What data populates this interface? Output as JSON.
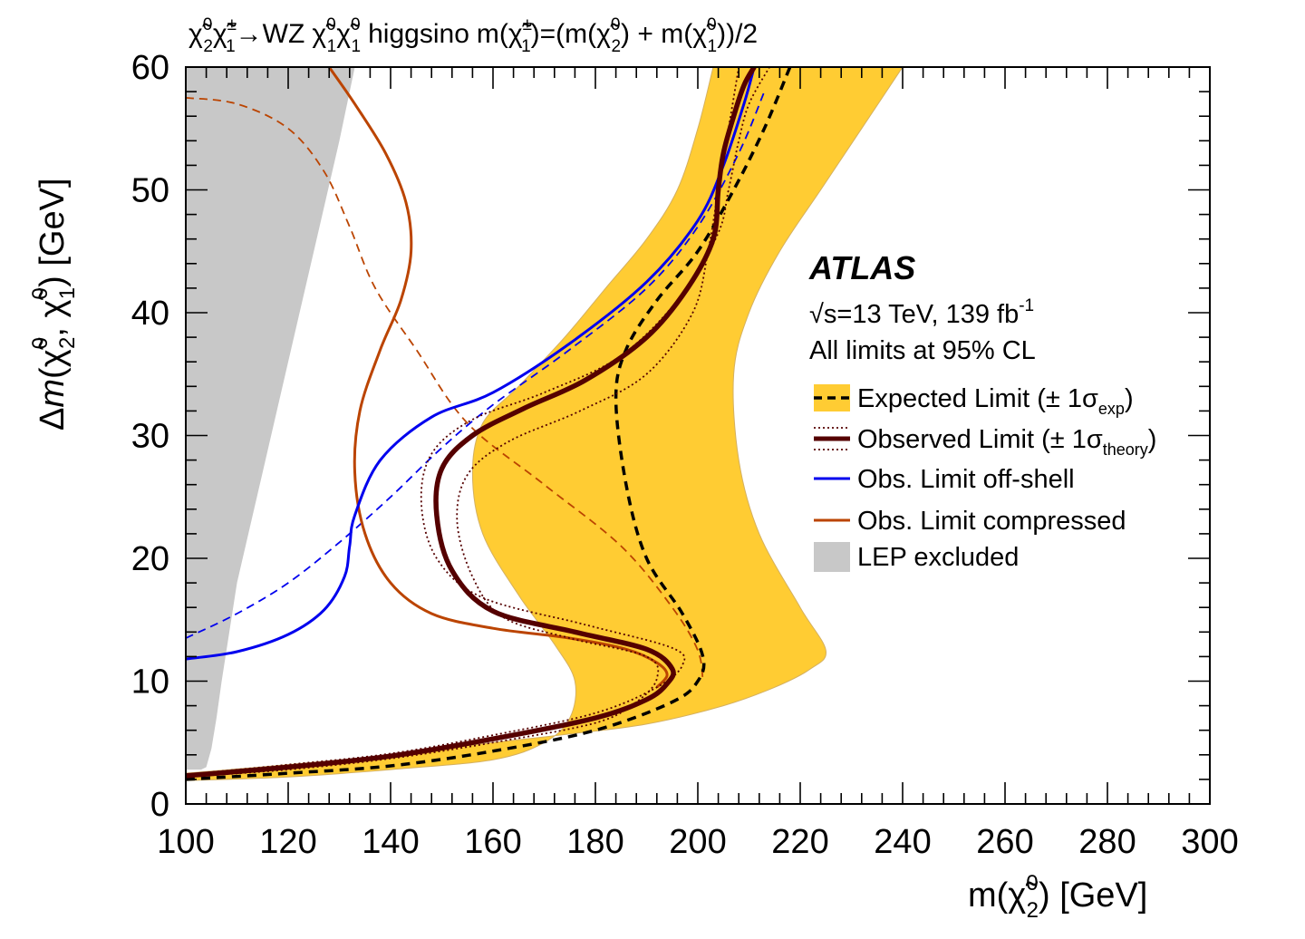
{
  "title": {
    "prefix": "χ̃",
    "arrow_part": "→WZ",
    "model": "higgsino",
    "mass_relation": "m(χ̃",
    "mass_mid": ")=(m(χ̃",
    "plus": ") + m(χ̃",
    "end": "))/2",
    "sup_0": "0",
    "sup_pm": "±",
    "sub_1": "1",
    "sub_2": "2"
  },
  "axes": {
    "x_label_main": "m(χ̃",
    "x_label_sup": "0",
    "x_label_sub": "2",
    "x_label_unit": ") [GeV]",
    "y_label_delta": "Δ",
    "y_label_m": "m",
    "y_label_open": "(χ̃",
    "y_label_sup": "0",
    "y_label_sub2": "2",
    "y_label_mid": ", χ̃",
    "y_label_sub1": "1",
    "y_label_unit": ") [GeV]"
  },
  "atlas": {
    "label": "ATLAS",
    "energy": "√s=13 TeV, 139 fb",
    "energy_sup": "-1",
    "cl": "All limits at 95% CL"
  },
  "legend": [
    {
      "label": "Expected Limit (± 1σ",
      "sub": "exp",
      "close": ")"
    },
    {
      "label": "Observed Limit (± 1σ",
      "sub": "theory",
      "close": ")"
    },
    {
      "label": "Obs. Limit off-shell",
      "sub": "",
      "close": ""
    },
    {
      "label": "Obs. Limit compressed",
      "sub": "",
      "close": ""
    },
    {
      "label": "LEP excluded",
      "sub": "",
      "close": ""
    }
  ],
  "colors": {
    "expected_band": "#FFCC33",
    "expected_line": "#000000",
    "observed": "#550000",
    "off_shell": "#0000EE",
    "compressed": "#BB4400",
    "lep": "#C8C8C8"
  },
  "chart_data": {
    "type": "line",
    "xlim": [
      100,
      300
    ],
    "ylim": [
      0,
      60
    ],
    "x_ticks": [
      100,
      120,
      140,
      160,
      180,
      200,
      220,
      240,
      260,
      280,
      300
    ],
    "y_ticks": [
      0,
      10,
      20,
      30,
      40,
      50,
      60
    ],
    "series": [
      {
        "name": "Expected Limit band upper",
        "role": "band_upper",
        "x": [
          100,
          120,
          140,
          160,
          175,
          190,
          205,
          215,
          222,
          225,
          220,
          212,
          208,
          207,
          210,
          216,
          224,
          232,
          240
        ],
        "y": [
          2.5,
          3.2,
          4.0,
          5.0,
          5.7,
          6.5,
          8.0,
          9.5,
          11,
          12.5,
          16,
          22,
          28,
          35,
          40,
          45,
          50,
          55,
          60
        ]
      },
      {
        "name": "Expected Limit band lower",
        "role": "band_lower",
        "x": [
          100,
          120,
          140,
          160,
          170,
          175,
          176,
          172,
          165,
          158,
          156,
          158,
          165,
          174,
          182,
          190,
          196,
          200,
          203
        ],
        "y": [
          1.9,
          2.2,
          2.8,
          3.6,
          5.0,
          7.0,
          10,
          13,
          17,
          22,
          27,
          31,
          34,
          38,
          42,
          46,
          50,
          55,
          60
        ]
      },
      {
        "name": "Expected Limit",
        "x": [
          100,
          120,
          140,
          160,
          180,
          195,
          200,
          201,
          197,
          190,
          186,
          184,
          186,
          192,
          200,
          207,
          213,
          218
        ],
        "y": [
          2.0,
          2.5,
          3.1,
          4.3,
          6.0,
          8.3,
          10.0,
          12.0,
          15.5,
          20.0,
          26.0,
          33.0,
          37.0,
          41.0,
          45.0,
          50.0,
          55.0,
          60.0
        ]
      },
      {
        "name": "Observed Limit",
        "x": [
          100,
          120,
          140,
          160,
          180,
          190,
          194,
          195,
          190,
          176,
          160,
          152,
          149,
          150,
          156,
          166,
          178,
          190,
          198,
          203,
          204,
          205,
          207,
          209,
          211
        ],
        "y": [
          2.3,
          3.0,
          3.9,
          5.3,
          7.0,
          8.5,
          9.8,
          11.0,
          12.6,
          14.0,
          15.7,
          19.0,
          23.5,
          27.3,
          30.0,
          32.2,
          34.5,
          38.0,
          42.0,
          46.0,
          50.0,
          53.0,
          56.0,
          58.5,
          60.0
        ]
      },
      {
        "name": "Observed Limit +1σ theory",
        "x": [
          100,
          120,
          140,
          160,
          180,
          192,
          197,
          195,
          178,
          158,
          149,
          146,
          148,
          156,
          170,
          185,
          197,
          204,
          206,
          208,
          210,
          214
        ],
        "y": [
          2.4,
          3.2,
          4.1,
          5.6,
          7.4,
          9.5,
          11.3,
          12.7,
          14.6,
          16.8,
          20.0,
          24.5,
          28.5,
          31.3,
          33.5,
          36.5,
          41.5,
          46.5,
          50.0,
          54.0,
          57.0,
          60.0
        ]
      },
      {
        "name": "Observed Limit -1σ theory",
        "x": [
          100,
          120,
          140,
          160,
          180,
          188,
          192,
          190,
          175,
          162,
          156,
          153,
          155,
          163,
          177,
          190,
          199,
          202,
          204,
          206,
          208
        ],
        "y": [
          2.2,
          2.8,
          3.7,
          5.0,
          6.6,
          8.3,
          10.2,
          12.0,
          13.5,
          15.2,
          18.5,
          23.0,
          26.8,
          29.5,
          32.0,
          35.0,
          40.0,
          45.0,
          50.0,
          55.0,
          60.0
        ]
      },
      {
        "name": "Obs. Limit off-shell",
        "x": [
          100,
          110,
          120,
          127,
          131,
          132,
          133,
          138,
          148,
          160,
          175,
          190,
          200,
          205,
          209,
          211
        ],
        "y": [
          11.8,
          12.4,
          13.8,
          15.8,
          18.5,
          21.0,
          23.5,
          28.0,
          31.5,
          33.5,
          37.5,
          42.5,
          47.5,
          52.0,
          57.0,
          60.0
        ]
      },
      {
        "name": "Obs. Limit off-shell (dashed)",
        "style": "dashed",
        "x": [
          100,
          110,
          120,
          130,
          140,
          150,
          160,
          175,
          190,
          200,
          208,
          213
        ],
        "y": [
          13.5,
          15.5,
          18.0,
          21.3,
          25.0,
          29.0,
          32.5,
          37.0,
          42.0,
          47.0,
          53.0,
          58.0
        ]
      },
      {
        "name": "Obs. Limit compressed",
        "x": [
          128,
          133,
          139,
          143,
          144,
          142,
          138,
          134,
          133,
          135,
          140,
          148,
          160,
          175,
          186,
          192,
          194,
          192
        ],
        "y": [
          60.0,
          57.0,
          53.0,
          49.0,
          45.0,
          41.0,
          37.0,
          32.0,
          27.0,
          22.0,
          18.0,
          15.5,
          14.3,
          13.5,
          12.6,
          11.5,
          10.5,
          9.5
        ]
      },
      {
        "name": "Obs. Limit compressed (dashed)",
        "style": "dashed",
        "x": [
          100,
          110,
          120,
          127,
          132,
          137,
          145,
          155,
          170,
          185,
          195,
          200,
          201
        ],
        "y": [
          57.5,
          57.0,
          55.0,
          51.5,
          47.0,
          42.0,
          37.0,
          31.0,
          26.0,
          21.0,
          16.0,
          12.5,
          10.0
        ]
      },
      {
        "name": "LEP excluded",
        "role": "fill",
        "x": [
          100,
          128,
          133,
          130,
          125,
          120,
          115,
          110,
          107,
          106,
          105,
          104,
          103,
          100
        ],
        "y": [
          60.0,
          60.0,
          60.0,
          54.0,
          45.0,
          36.0,
          27.0,
          18.0,
          10.0,
          7.0,
          4.5,
          3.0,
          2.8,
          2.8
        ]
      }
    ]
  }
}
